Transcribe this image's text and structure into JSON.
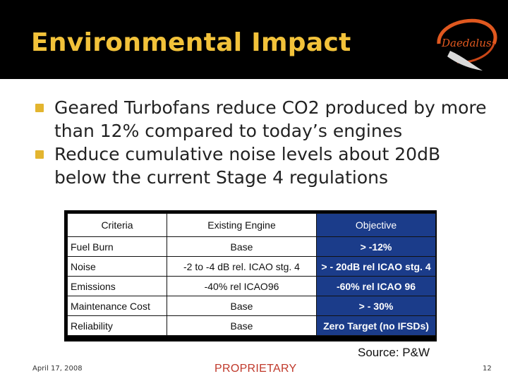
{
  "slide": {
    "title": "Environmental Impact",
    "logo_text": "Daedalus",
    "bullets": [
      "Geared Turbofans reduce CO2 produced by more than 12% compared to today’s engines",
      "Reduce cumulative noise levels about 20dB below the current Stage 4 regulations"
    ],
    "table": {
      "headers": [
        "Criteria",
        "Existing Engine",
        "Objective"
      ],
      "rows": [
        [
          "Fuel Burn",
          "Base",
          "> -12%"
        ],
        [
          "Noise",
          "-2 to -4 dB rel. ICAO stg. 4",
          "> - 20dB rel ICAO stg. 4"
        ],
        [
          "Emissions",
          "-40% rel ICAO96",
          "-60% rel ICAO 96"
        ],
        [
          "Maintenance Cost",
          "Base",
          "> - 30%"
        ],
        [
          "Reliability",
          "Base",
          "Zero Target (no IFSDs)"
        ]
      ]
    },
    "source": "Source: P&W",
    "footer": {
      "date": "April 17, 2008",
      "proprietary": "PROPRIETARY",
      "page_number": "12"
    }
  },
  "colors": {
    "header_bg": "#000000",
    "title": "#f2c23a",
    "bullet_marker": "#e3b52f",
    "objective_bg": "#1b3c8a",
    "proprietary": "#c0392b"
  },
  "icons": {
    "logo": "daedalus-logo"
  }
}
